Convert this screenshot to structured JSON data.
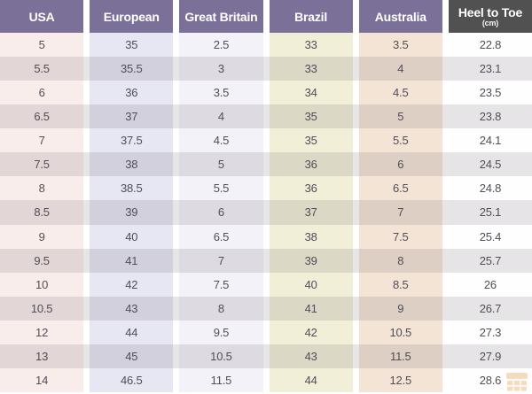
{
  "chart_data": {
    "type": "table",
    "columns": [
      {
        "label": "USA"
      },
      {
        "label": "European"
      },
      {
        "label": "Great Britain"
      },
      {
        "label": "Brazil"
      },
      {
        "label": "Australia"
      },
      {
        "label": "Heel to Toe",
        "sublabel": "(cm)"
      }
    ],
    "rows": [
      [
        "5",
        "35",
        "2.5",
        "33",
        "3.5",
        "22.8"
      ],
      [
        "5.5",
        "35.5",
        "3",
        "33",
        "4",
        "23.1"
      ],
      [
        "6",
        "36",
        "3.5",
        "34",
        "4.5",
        "23.5"
      ],
      [
        "6.5",
        "37",
        "4",
        "35",
        "5",
        "23.8"
      ],
      [
        "7",
        "37.5",
        "4.5",
        "35",
        "5.5",
        "24.1"
      ],
      [
        "7.5",
        "38",
        "5",
        "36",
        "6",
        "24.5"
      ],
      [
        "8",
        "38.5",
        "5.5",
        "36",
        "6.5",
        "24.8"
      ],
      [
        "8.5",
        "39",
        "6",
        "37",
        "7",
        "25.1"
      ],
      [
        "9",
        "40",
        "6.5",
        "38",
        "7.5",
        "25.4"
      ],
      [
        "9.5",
        "41",
        "7",
        "39",
        "8",
        "25.7"
      ],
      [
        "10",
        "42",
        "7.5",
        "40",
        "8.5",
        "26"
      ],
      [
        "10.5",
        "43",
        "8",
        "41",
        "9",
        "26.7"
      ],
      [
        "12",
        "44",
        "9.5",
        "42",
        "10.5",
        "27.3"
      ],
      [
        "13",
        "45",
        "10.5",
        "43",
        "11.5",
        "27.9"
      ],
      [
        "14",
        "46.5",
        "11.5",
        "44",
        "12.5",
        "28.6"
      ]
    ],
    "legend_position": "none",
    "grid": "column-bands with alternating row shading"
  },
  "icons": {
    "watermark": "storefront-logo-icon"
  },
  "colors": {
    "header_purple": "#7b7198",
    "header_dark": "#515151",
    "header_text": "#ffffff",
    "cell_text": "#514e57",
    "gap": "#ffffff",
    "even_overlay": "rgba(106,96,106,0.16)",
    "watermark": "#e8973f",
    "columns": [
      "#f9edeb",
      "#e7e6f3",
      "#f3f2f8",
      "#f1efd8",
      "#f4e4d6",
      "#fefefe"
    ]
  }
}
